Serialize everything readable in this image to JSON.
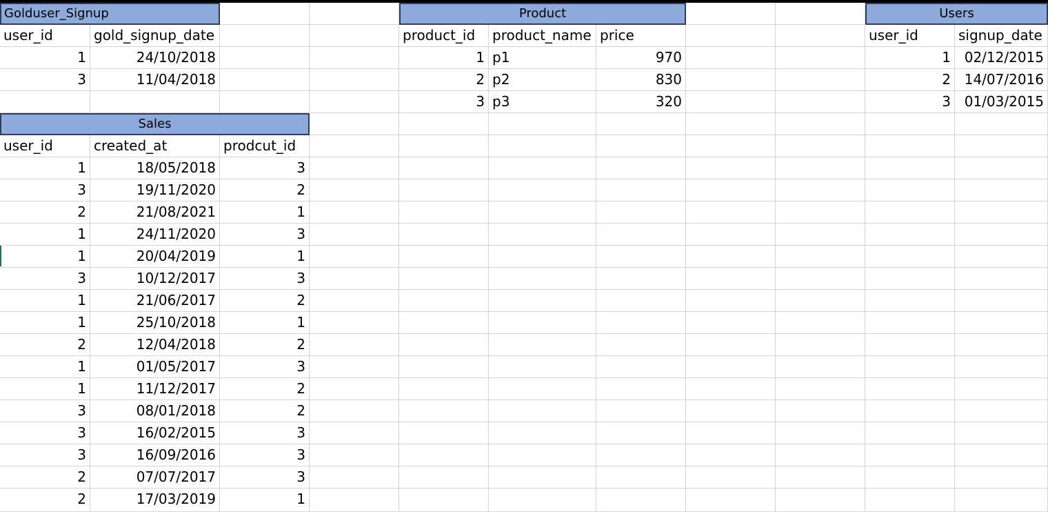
{
  "sheet": {
    "tables": {
      "goldusers": {
        "title": "Golduser_Signup",
        "headers": [
          "user_id",
          "gold_signup_date"
        ],
        "rows": [
          [
            "1",
            "24/10/2018"
          ],
          [
            "3",
            "11/04/2018"
          ]
        ]
      },
      "product": {
        "title": "Product",
        "headers": [
          "product_id",
          "product_name",
          "price"
        ],
        "rows": [
          [
            "1",
            "p1",
            "970"
          ],
          [
            "2",
            "p2",
            "830"
          ],
          [
            "3",
            "p3",
            "320"
          ]
        ]
      },
      "users": {
        "title": "Users",
        "headers": [
          "user_id",
          "signup_date"
        ],
        "rows": [
          [
            "1",
            "02/12/2015"
          ],
          [
            "2",
            "14/07/2016"
          ],
          [
            "3",
            "01/03/2015"
          ]
        ]
      },
      "sales": {
        "title": "Sales",
        "headers": [
          "user_id",
          "created_at",
          "prodcut_id"
        ],
        "rows": [
          [
            "1",
            "18/05/2018",
            "3"
          ],
          [
            "3",
            "19/11/2020",
            "2"
          ],
          [
            "2",
            "21/08/2021",
            "1"
          ],
          [
            "1",
            "24/11/2020",
            "3"
          ],
          [
            "1",
            "20/04/2019",
            "1"
          ],
          [
            "3",
            "10/12/2017",
            "3"
          ],
          [
            "1",
            "21/06/2017",
            "2"
          ],
          [
            "1",
            "25/10/2018",
            "1"
          ],
          [
            "2",
            "12/04/2018",
            "2"
          ],
          [
            "1",
            "01/05/2017",
            "3"
          ],
          [
            "1",
            "11/12/2017",
            "2"
          ],
          [
            "3",
            "08/01/2018",
            "2"
          ],
          [
            "3",
            "16/02/2015",
            "3"
          ],
          [
            "3",
            "16/09/2016",
            "3"
          ],
          [
            "2",
            "07/07/2017",
            "3"
          ],
          [
            "2",
            "17/03/2019",
            "1"
          ]
        ]
      }
    },
    "colors": {
      "header_fill": "#8ea9db",
      "header_border": "#2f3d55",
      "gridline": "#d4d4d4",
      "selection_marker": "#217346"
    }
  }
}
